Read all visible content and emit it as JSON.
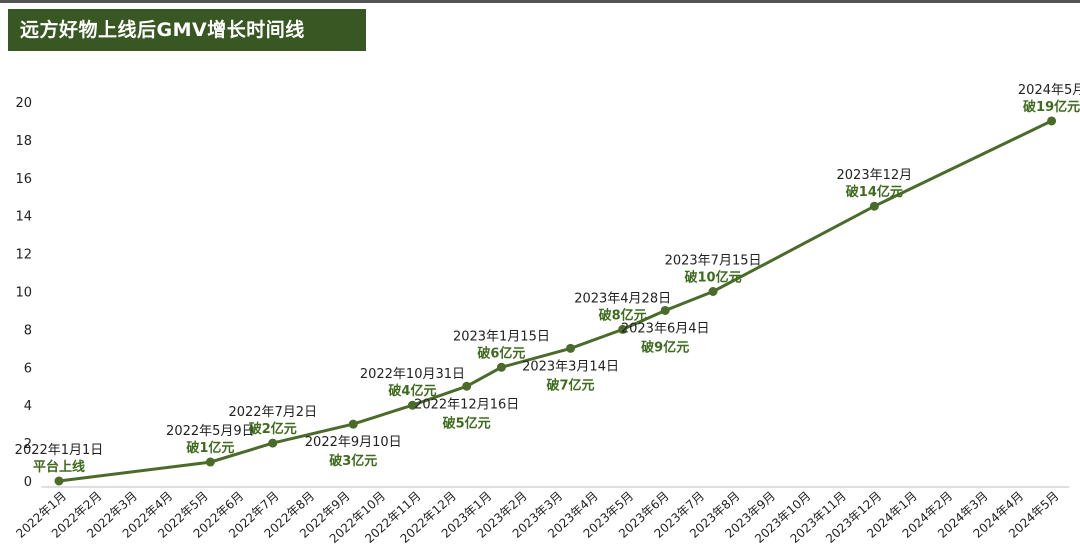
{
  "title": "远方好物上线后GMV增长时间线",
  "colors": {
    "title_bg": "#385723",
    "line": "#4a6b2a",
    "value_text": "#3f6b1f"
  },
  "chart_data": {
    "type": "line",
    "ylim": [
      0,
      20
    ],
    "yticks": [
      0,
      2,
      4,
      6,
      8,
      10,
      12,
      14,
      16,
      18,
      20
    ],
    "categories": [
      "2022年1月",
      "2022年2月",
      "2022年3月",
      "2022年4月",
      "2022年5月",
      "2022年6月",
      "2022年7月",
      "2022年8月",
      "2022年9月",
      "2022年10月",
      "2022年11月",
      "2022年12月",
      "2023年1月",
      "2023年2月",
      "2023年3月",
      "2023年4月",
      "2023年5月",
      "2023年6月",
      "2023年7月",
      "2023年8月",
      "2023年9月",
      "2023年10月",
      "2023年11月",
      "2023年12月",
      "2024年1月",
      "2024年2月",
      "2024年3月",
      "2024年4月",
      "2024年5月"
    ],
    "grid": false,
    "points": [
      {
        "x": 0,
        "y": 0,
        "date": "2022年1月1日",
        "value": "平台上线",
        "label": "above"
      },
      {
        "x": 4.27,
        "y": 1,
        "date": "2022年5月9日",
        "value": "破1亿元",
        "label": "above"
      },
      {
        "x": 6.03,
        "y": 2,
        "date": "2022年7月2日",
        "value": "破2亿元",
        "label": "above"
      },
      {
        "x": 8.3,
        "y": 3,
        "date": "2022年9月10日",
        "value": "破3亿元",
        "label": "below"
      },
      {
        "x": 9.97,
        "y": 4,
        "date": "2022年10月31日",
        "value": "破4亿元",
        "label": "above"
      },
      {
        "x": 11.5,
        "y": 5,
        "date": "2022年12月16日",
        "value": "破5亿元",
        "label": "below"
      },
      {
        "x": 12.48,
        "y": 6,
        "date": "2023年1月15日",
        "value": "破6亿元",
        "label": "above"
      },
      {
        "x": 14.43,
        "y": 7,
        "date": "2023年3月14日",
        "value": "破7亿元",
        "label": "below"
      },
      {
        "x": 15.9,
        "y": 8,
        "date": "2023年4月28日",
        "value": "破8亿元",
        "label": "above"
      },
      {
        "x": 17.1,
        "y": 9,
        "date": "2023年6月4日",
        "value": "破9亿元",
        "label": "below"
      },
      {
        "x": 18.45,
        "y": 10,
        "date": "2023年7月15日",
        "value": "破10亿元",
        "label": "above"
      },
      {
        "x": 23.0,
        "y": 14.5,
        "date": "2023年12月",
        "value": "破14亿元",
        "label": "above"
      },
      {
        "x": 28.0,
        "y": 19,
        "date": "2024年5月",
        "value": "破19亿元",
        "label": "above"
      }
    ]
  }
}
